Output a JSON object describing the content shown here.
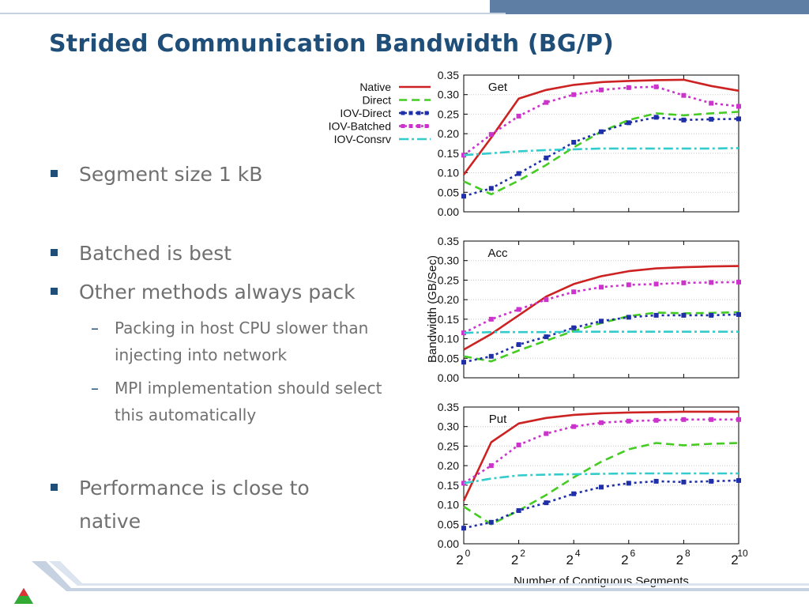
{
  "slide": {
    "title": "Strided Communication Bandwidth (BG/P)",
    "bullets": [
      {
        "text": "Segment size 1 kB"
      },
      {
        "text": "Batched is best"
      },
      {
        "text": "Other methods always pack"
      },
      {
        "text": "Performance is close to native"
      }
    ],
    "subbullets": [
      {
        "text": "Packing in host CPU slower than injecting into network"
      },
      {
        "text": "MPI implementation should select this automatically"
      }
    ],
    "colors": {
      "title": "#1f4e79",
      "body": "#707070",
      "accent": "#5f7ea4"
    }
  },
  "chart_data": {
    "type": "line",
    "ylabel": "Bandwidth (GB/Sec)",
    "xlabel": "Number of Contiguous Segments",
    "ylim": [
      0,
      0.35
    ],
    "yticks": [
      "0.00",
      "0.05",
      "0.10",
      "0.15",
      "0.20",
      "0.25",
      "0.30",
      "0.35"
    ],
    "xticks": [
      {
        "base": "2",
        "exp": "0"
      },
      {
        "base": "2",
        "exp": "2"
      },
      {
        "base": "2",
        "exp": "4"
      },
      {
        "base": "2",
        "exp": "6"
      },
      {
        "base": "2",
        "exp": "8"
      },
      {
        "base": "2",
        "exp": "10"
      }
    ],
    "x_log2": [
      0,
      1,
      2,
      3,
      4,
      5,
      6,
      7,
      8,
      9,
      10
    ],
    "grid": true,
    "legend": {
      "position": "left of top panel",
      "entries": [
        {
          "name": "Native",
          "color": "#cc2222",
          "dash": "solid",
          "markers": false
        },
        {
          "name": "Direct",
          "color": "#44cc22",
          "dash": "dashed",
          "markers": false
        },
        {
          "name": "IOV-Direct",
          "color": "#1f2fa8",
          "dash": "dotted",
          "markers": true
        },
        {
          "name": "IOV-Batched",
          "color": "#cc33cc",
          "dash": "dotted",
          "markers": true
        },
        {
          "name": "IOV-Consrv",
          "color": "#33cccc",
          "dash": "dashdot",
          "markers": false
        }
      ]
    },
    "panels": [
      {
        "label": "Get",
        "series": [
          {
            "name": "Native",
            "values": [
              0.095,
              0.19,
              0.29,
              0.312,
              0.325,
              0.332,
              0.335,
              0.337,
              0.338,
              0.322,
              0.31
            ]
          },
          {
            "name": "Direct",
            "values": [
              0.078,
              0.045,
              0.08,
              0.12,
              0.165,
              0.205,
              0.235,
              0.252,
              0.247,
              0.252,
              0.256
            ]
          },
          {
            "name": "IOV-Direct",
            "values": [
              0.04,
              0.06,
              0.098,
              0.138,
              0.178,
              0.205,
              0.228,
              0.242,
              0.235,
              0.237,
              0.238
            ]
          },
          {
            "name": "IOV-Batched",
            "values": [
              0.145,
              0.198,
              0.245,
              0.28,
              0.3,
              0.312,
              0.318,
              0.32,
              0.298,
              0.278,
              0.27
            ]
          },
          {
            "name": "IOV-Consrv",
            "values": [
              0.145,
              0.15,
              0.155,
              0.158,
              0.16,
              0.162,
              0.162,
              0.162,
              0.162,
              0.162,
              0.163
            ]
          }
        ]
      },
      {
        "label": "Acc",
        "series": [
          {
            "name": "Native",
            "values": [
              0.072,
              0.112,
              0.16,
              0.208,
              0.24,
              0.26,
              0.273,
              0.28,
              0.283,
              0.285,
              0.286
            ]
          },
          {
            "name": "Direct",
            "values": [
              0.055,
              0.042,
              0.07,
              0.095,
              0.12,
              0.14,
              0.158,
              0.167,
              0.165,
              0.166,
              0.168
            ]
          },
          {
            "name": "IOV-Direct",
            "values": [
              0.04,
              0.055,
              0.085,
              0.105,
              0.128,
              0.145,
              0.155,
              0.16,
              0.16,
              0.16,
              0.162
            ]
          },
          {
            "name": "IOV-Batched",
            "values": [
              0.115,
              0.15,
              0.175,
              0.2,
              0.22,
              0.232,
              0.238,
              0.24,
              0.243,
              0.244,
              0.245
            ]
          },
          {
            "name": "IOV-Consrv",
            "values": [
              0.115,
              0.117,
              0.117,
              0.117,
              0.118,
              0.118,
              0.118,
              0.118,
              0.118,
              0.118,
              0.118
            ]
          }
        ]
      },
      {
        "label": "Put",
        "series": [
          {
            "name": "Native",
            "values": [
              0.11,
              0.26,
              0.308,
              0.322,
              0.33,
              0.334,
              0.336,
              0.337,
              0.338,
              0.338,
              0.338
            ]
          },
          {
            "name": "Direct",
            "values": [
              0.095,
              0.05,
              0.085,
              0.125,
              0.17,
              0.21,
              0.242,
              0.258,
              0.252,
              0.256,
              0.258
            ]
          },
          {
            "name": "IOV-Direct",
            "values": [
              0.04,
              0.055,
              0.085,
              0.105,
              0.128,
              0.145,
              0.155,
              0.16,
              0.158,
              0.16,
              0.162
            ]
          },
          {
            "name": "IOV-Batched",
            "values": [
              0.155,
              0.2,
              0.253,
              0.282,
              0.3,
              0.31,
              0.314,
              0.316,
              0.318,
              0.318,
              0.318
            ]
          },
          {
            "name": "IOV-Consrv",
            "values": [
              0.155,
              0.167,
              0.175,
              0.177,
              0.178,
              0.179,
              0.18,
              0.18,
              0.18,
              0.18,
              0.18
            ]
          }
        ]
      }
    ]
  }
}
